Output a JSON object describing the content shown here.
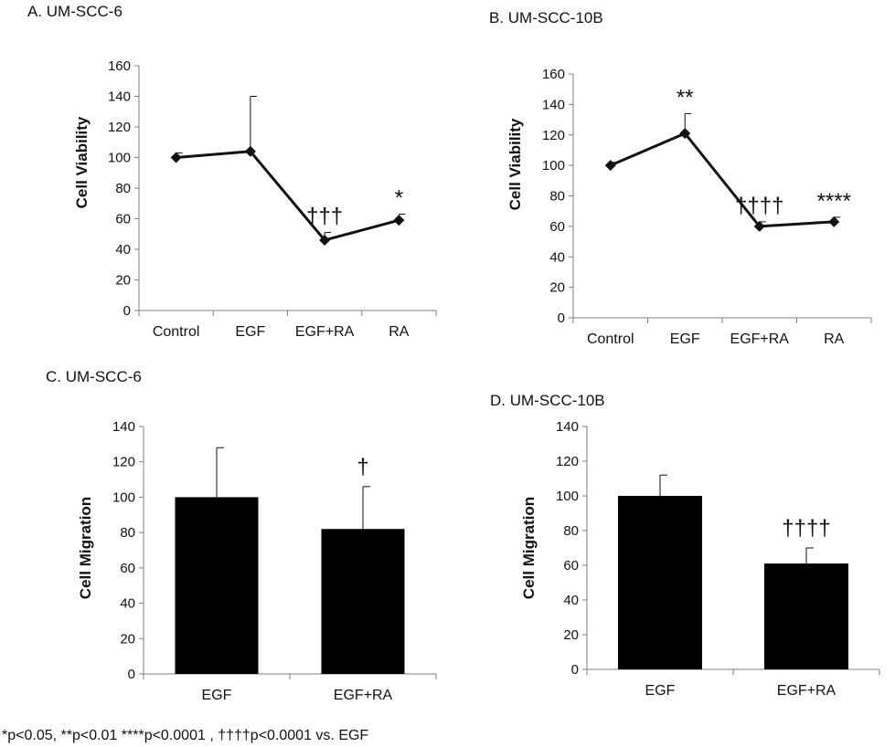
{
  "colors": {
    "ink": "#111111",
    "bar": "#000000",
    "axis": "#7f7f7f"
  },
  "footnote": "*p<0.05, **p<0.01 ****p<0.0001 , ††††p<0.0001 vs. EGF",
  "chart_data": [
    {
      "type": "line",
      "title": "A.  UM-SCC-6",
      "ylabel": "Cell Viability",
      "categories": [
        "Control",
        "EGF",
        "EGF+RA",
        "RA"
      ],
      "values": [
        100,
        104,
        46,
        59
      ],
      "errors": [
        3,
        36,
        5,
        4
      ],
      "annotations": [
        "",
        "",
        "†††",
        "*"
      ],
      "ylim": [
        0,
        160
      ],
      "yticks": [
        "0",
        "20",
        "40",
        "60",
        "80",
        "100",
        "120",
        "140",
        "160"
      ]
    },
    {
      "type": "line",
      "title": "B. UM-SCC-10B",
      "ylabel": "Cell Viability",
      "categories": [
        "Control",
        "EGF",
        "EGF+RA",
        "RA"
      ],
      "values": [
        100,
        121,
        60,
        63
      ],
      "errors": [
        2,
        13,
        3,
        3
      ],
      "annotations": [
        "",
        "**",
        "††††",
        "****"
      ],
      "ylim": [
        0,
        160
      ],
      "yticks": [
        "0",
        "20",
        "40",
        "60",
        "80",
        "100",
        "120",
        "140",
        "160"
      ]
    },
    {
      "type": "bar",
      "title": "C. UM-SCC-6",
      "ylabel": "Cell Migration",
      "categories": [
        "EGF",
        "EGF+RA"
      ],
      "values": [
        100,
        82
      ],
      "errors": [
        28,
        24
      ],
      "annotations": [
        "",
        "†"
      ],
      "ylim": [
        0,
        140
      ],
      "yticks": [
        "0",
        "20",
        "40",
        "60",
        "80",
        "100",
        "120",
        "140"
      ]
    },
    {
      "type": "bar",
      "title": "D. UM-SCC-10B",
      "ylabel": "Cell Migration",
      "categories": [
        "EGF",
        "EGF+RA"
      ],
      "values": [
        100,
        61
      ],
      "errors": [
        12,
        9
      ],
      "annotations": [
        "",
        "††††"
      ],
      "ylim": [
        0,
        140
      ],
      "yticks": [
        "0",
        "20",
        "40",
        "60",
        "80",
        "100",
        "120",
        "140"
      ]
    }
  ]
}
